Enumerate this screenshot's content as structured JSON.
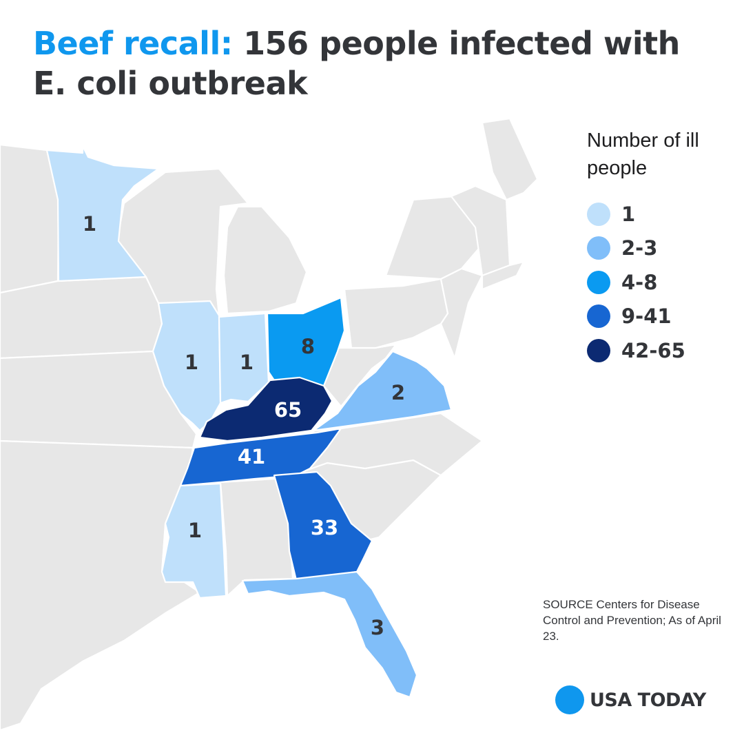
{
  "title": {
    "highlight": "Beef recall:",
    "rest": " 156 people infected with E. coli outbreak"
  },
  "legend": {
    "title": "Number of ill people",
    "items": [
      {
        "label": "1",
        "color": "#bfe0fb"
      },
      {
        "label": "2-3",
        "color": "#80bef9"
      },
      {
        "label": "4-8",
        "color": "#0a9af1"
      },
      {
        "label": "9-41",
        "color": "#1766d2"
      },
      {
        "label": "42-65",
        "color": "#0c2a72"
      }
    ]
  },
  "map": {
    "base_color": "#e7e7e7",
    "states": [
      {
        "name": "Minnesota",
        "count": "1",
        "color": "#bfe0fb",
        "label_color": "#333539"
      },
      {
        "name": "Illinois",
        "count": "1",
        "color": "#bfe0fb",
        "label_color": "#333539"
      },
      {
        "name": "Indiana",
        "count": "1",
        "color": "#bfe0fb",
        "label_color": "#333539"
      },
      {
        "name": "Ohio",
        "count": "8",
        "color": "#0a9af1",
        "label_color": "#333539"
      },
      {
        "name": "Virginia",
        "count": "2",
        "color": "#80bef9",
        "label_color": "#333539"
      },
      {
        "name": "Kentucky",
        "count": "65",
        "color": "#0c2a72",
        "label_color": "#ffffff"
      },
      {
        "name": "Tennessee",
        "count": "41",
        "color": "#1766d2",
        "label_color": "#ffffff"
      },
      {
        "name": "Mississippi",
        "count": "1",
        "color": "#bfe0fb",
        "label_color": "#333539"
      },
      {
        "name": "Georgia",
        "count": "33",
        "color": "#1766d2",
        "label_color": "#ffffff"
      },
      {
        "name": "Florida",
        "count": "3",
        "color": "#80bef9",
        "label_color": "#333539"
      }
    ]
  },
  "source": "SOURCE Centers for Disease Control and Prevention; As of April 23.",
  "logo": {
    "text": "USA TODAY",
    "color": "#0f97ee"
  }
}
